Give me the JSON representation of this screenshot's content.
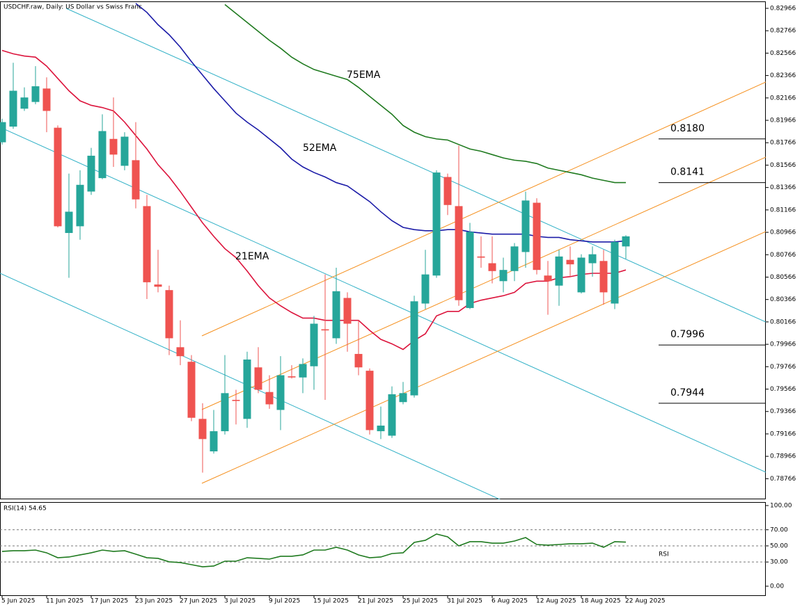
{
  "chart_data": [
    {
      "type": "candlestick",
      "title": "USDCHF.raw, Daily:  US Dollar vs Swiss Franc",
      "categories": [
        "5 Jun 2025",
        null,
        null,
        null,
        "11 Jun 2025",
        null,
        null,
        null,
        "17 Jun 2025",
        null,
        null,
        null,
        "23 Jun 2025",
        null,
        null,
        null,
        "27 Jun 2025",
        null,
        null,
        null,
        "3 Jul 2025",
        null,
        null,
        null,
        "9 Jul 2025",
        null,
        null,
        null,
        "15 Jul 2025",
        null,
        null,
        null,
        "21 Jul 2025",
        null,
        null,
        null,
        "25 Jul 2025",
        null,
        null,
        null,
        "31 Jul 2025",
        null,
        null,
        null,
        "6 Aug 2025",
        null,
        null,
        null,
        "12 Aug 2025",
        null,
        null,
        null,
        "18 Aug 2025",
        null,
        null,
        null,
        "22 Aug 2025"
      ],
      "open": [
        0.8177,
        0.8191,
        0.8207,
        0.8213,
        0.8225,
        0.819,
        0.8096,
        0.8102,
        0.8133,
        0.8145,
        0.818,
        0.8156,
        0.8161,
        0.812,
        0.805,
        0.8045,
        0.7994,
        0.7981,
        0.793,
        0.7901,
        0.7919,
        0.7947,
        0.793,
        0.7976,
        0.7954,
        0.7938,
        0.7968,
        0.7967,
        0.7977,
        0.801,
        0.8002,
        0.8038,
        0.7988,
        0.7973,
        0.7919,
        0.7915,
        0.7945,
        0.7951,
        0.8033,
        0.8058,
        0.8146,
        0.812,
        0.8029,
        0.8075,
        0.8069,
        0.8053,
        0.8062,
        0.8079,
        0.8123,
        0.8058,
        0.8049,
        0.8072,
        0.8043,
        0.8069,
        0.8071,
        0.8033,
        0.8084
      ],
      "high": [
        0.8198,
        0.8248,
        0.8226,
        0.8245,
        0.8235,
        0.8192,
        0.8149,
        0.8152,
        0.8172,
        0.8202,
        0.8217,
        0.8186,
        0.8195,
        0.813,
        0.8081,
        0.8049,
        0.8018,
        0.7987,
        0.7944,
        0.7938,
        0.7987,
        0.7956,
        0.799,
        0.7994,
        0.7969,
        0.7986,
        0.7978,
        0.7984,
        0.8022,
        0.8059,
        0.8065,
        0.8043,
        0.8018,
        0.7975,
        0.7941,
        0.7959,
        0.7963,
        0.804,
        0.8081,
        0.8152,
        0.8149,
        0.8174,
        0.8105,
        0.8093,
        0.8093,
        0.8074,
        0.8087,
        0.8133,
        0.8127,
        0.8071,
        0.8081,
        0.8084,
        0.8077,
        0.8084,
        0.8081,
        0.809,
        0.8094
      ],
      "low": [
        0.8175,
        0.8189,
        0.8205,
        0.8211,
        0.8186,
        0.8101,
        0.8056,
        0.809,
        0.813,
        0.8144,
        0.8155,
        0.8152,
        0.8118,
        0.8037,
        0.8043,
        0.7987,
        0.7978,
        0.7928,
        0.7882,
        0.7899,
        0.7916,
        0.7925,
        0.7922,
        0.7953,
        0.7939,
        0.792,
        0.7966,
        0.7953,
        0.7956,
        0.7947,
        0.7997,
        0.799,
        0.7969,
        0.7916,
        0.7912,
        0.7913,
        0.7943,
        0.7949,
        0.8028,
        0.8056,
        0.8112,
        0.8031,
        0.8028,
        0.8065,
        0.8051,
        0.8043,
        0.8053,
        0.8065,
        0.8059,
        0.8023,
        0.8031,
        0.8057,
        0.8042,
        0.8057,
        0.8032,
        0.8028,
        0.8073
      ],
      "close": [
        0.8195,
        0.8223,
        0.8217,
        0.8227,
        0.8205,
        0.8102,
        0.8115,
        0.8139,
        0.8165,
        0.8187,
        0.8166,
        0.8182,
        0.8126,
        0.8052,
        0.8048,
        0.8002,
        0.7986,
        0.7931,
        0.7912,
        0.7919,
        0.7953,
        0.7946,
        0.7983,
        0.7956,
        0.7943,
        0.7969,
        0.7967,
        0.7979,
        0.8015,
        0.8009,
        0.8044,
        0.8015,
        0.7976,
        0.792,
        0.7924,
        0.7952,
        0.7953,
        0.8035,
        0.8059,
        0.815,
        0.8121,
        0.8036,
        0.8097,
        0.8074,
        0.8062,
        0.8063,
        0.8084,
        0.8125,
        0.8063,
        0.8053,
        0.8075,
        0.8068,
        0.8074,
        0.8077,
        0.8043,
        0.8088,
        0.8093
      ],
      "up_color": "#26a69a",
      "down_color": "#ef5350",
      "series": [
        {
          "name": "21EMA",
          "color": "#dc143c",
          "values": [
            0.8259,
            0.8256,
            0.8254,
            0.8253,
            0.8245,
            0.8234,
            0.8223,
            0.8214,
            0.821,
            0.8208,
            0.8205,
            0.8195,
            0.8183,
            0.8171,
            0.8157,
            0.8146,
            0.8133,
            0.8119,
            0.8105,
            0.8093,
            0.8082,
            0.8074,
            0.8062,
            0.8049,
            0.8038,
            0.8031,
            0.8025,
            0.802,
            0.802,
            0.8018,
            0.8018,
            0.8018,
            0.8018,
            0.8009,
            0.8001,
            0.7997,
            0.7992,
            0.8,
            0.8006,
            0.8022,
            0.8026,
            0.8026,
            0.8033,
            0.8036,
            0.8038,
            0.804,
            0.8043,
            0.8051,
            0.8053,
            0.8053,
            0.8056,
            0.8057,
            0.8059,
            0.806,
            0.806,
            0.806,
            0.8063
          ]
        },
        {
          "name": "52EMA",
          "color": "#1c1ca8",
          "values": [
            null,
            null,
            null,
            null,
            null,
            null,
            null,
            null,
            null,
            null,
            null,
            null,
            0.8301,
            0.8293,
            0.8282,
            0.8273,
            0.8262,
            0.8249,
            0.8237,
            0.8225,
            0.8214,
            0.8203,
            0.8195,
            0.8188,
            0.818,
            0.8172,
            0.8162,
            0.8155,
            0.815,
            0.8146,
            0.8141,
            0.8138,
            0.8131,
            0.8124,
            0.8115,
            0.8107,
            0.8101,
            0.8099,
            0.8098,
            0.8098,
            0.8099,
            0.8099,
            0.8097,
            0.8096,
            0.8095,
            0.8095,
            0.8095,
            0.8095,
            0.8093,
            0.8092,
            0.8092,
            0.809,
            0.8089,
            0.8088,
            0.8088,
            0.8088,
            0.8089
          ]
        },
        {
          "name": "75EMA",
          "color": "#1f7a1f",
          "values": [
            null,
            null,
            null,
            null,
            null,
            null,
            null,
            null,
            null,
            null,
            null,
            null,
            null,
            null,
            null,
            null,
            null,
            null,
            null,
            null,
            0.83,
            0.8292,
            0.8284,
            0.8276,
            0.8268,
            0.8261,
            0.8253,
            0.8247,
            0.8242,
            0.8239,
            0.8236,
            0.8233,
            0.8226,
            0.8218,
            0.821,
            0.8202,
            0.8192,
            0.8186,
            0.8182,
            0.818,
            0.8179,
            0.8175,
            0.8171,
            0.8169,
            0.8166,
            0.8163,
            0.8161,
            0.816,
            0.8158,
            0.8154,
            0.8152,
            0.815,
            0.8148,
            0.8145,
            0.8143,
            0.8141,
            0.8141
          ]
        }
      ],
      "levels": [
        {
          "value": 0.818,
          "label": "0.8180"
        },
        {
          "value": 0.8141,
          "label": "0.8141"
        },
        {
          "value": 0.7996,
          "label": "0.7996"
        },
        {
          "value": 0.7944,
          "label": "0.7944"
        }
      ],
      "ylim": [
        0.78582,
        0.83028
      ],
      "yticks": [
        0.82966,
        0.82766,
        0.82566,
        0.82366,
        0.82166,
        0.81966,
        0.81766,
        0.81566,
        0.81366,
        0.81166,
        0.80966,
        0.80766,
        0.80566,
        0.80366,
        0.80166,
        0.79966,
        0.79766,
        0.79566,
        0.79366,
        0.79166,
        0.78966,
        0.78766
      ]
    },
    {
      "type": "line",
      "title": "RSI(14) 54.65",
      "series": [
        {
          "name": "RSI",
          "color": "#1f7a1f",
          "values": [
            43.1,
            44.0,
            44.0,
            44.8,
            41.4,
            35.3,
            36.2,
            38.8,
            41.4,
            44.8,
            43.1,
            44.0,
            39.7,
            35.3,
            34.5,
            30.2,
            29.3,
            26.7,
            24.1,
            25.0,
            31.0,
            31.0,
            35.3,
            34.5,
            33.6,
            37.1,
            37.1,
            38.8,
            44.8,
            44.8,
            48.3,
            44.8,
            38.8,
            35.3,
            36.2,
            40.5,
            41.4,
            54.3,
            56.9,
            64.7,
            61.2,
            50.0,
            55.2,
            55.2,
            53.4,
            53.4,
            56.0,
            60.3,
            51.7,
            50.9,
            51.7,
            52.6,
            52.6,
            53.4,
            48.3,
            55.2,
            54.65
          ]
        }
      ],
      "levels": [
        70,
        50,
        30
      ],
      "ylim": [
        -12.1,
        104.3
      ],
      "yticks": [
        {
          "value": 100,
          "label": "100.00"
        },
        {
          "value": 70,
          "label": "70.00"
        },
        {
          "value": 50,
          "label": "50.00"
        },
        {
          "value": 30,
          "label": "30.00"
        },
        {
          "value": 0,
          "label": "0.00"
        }
      ]
    }
  ]
}
